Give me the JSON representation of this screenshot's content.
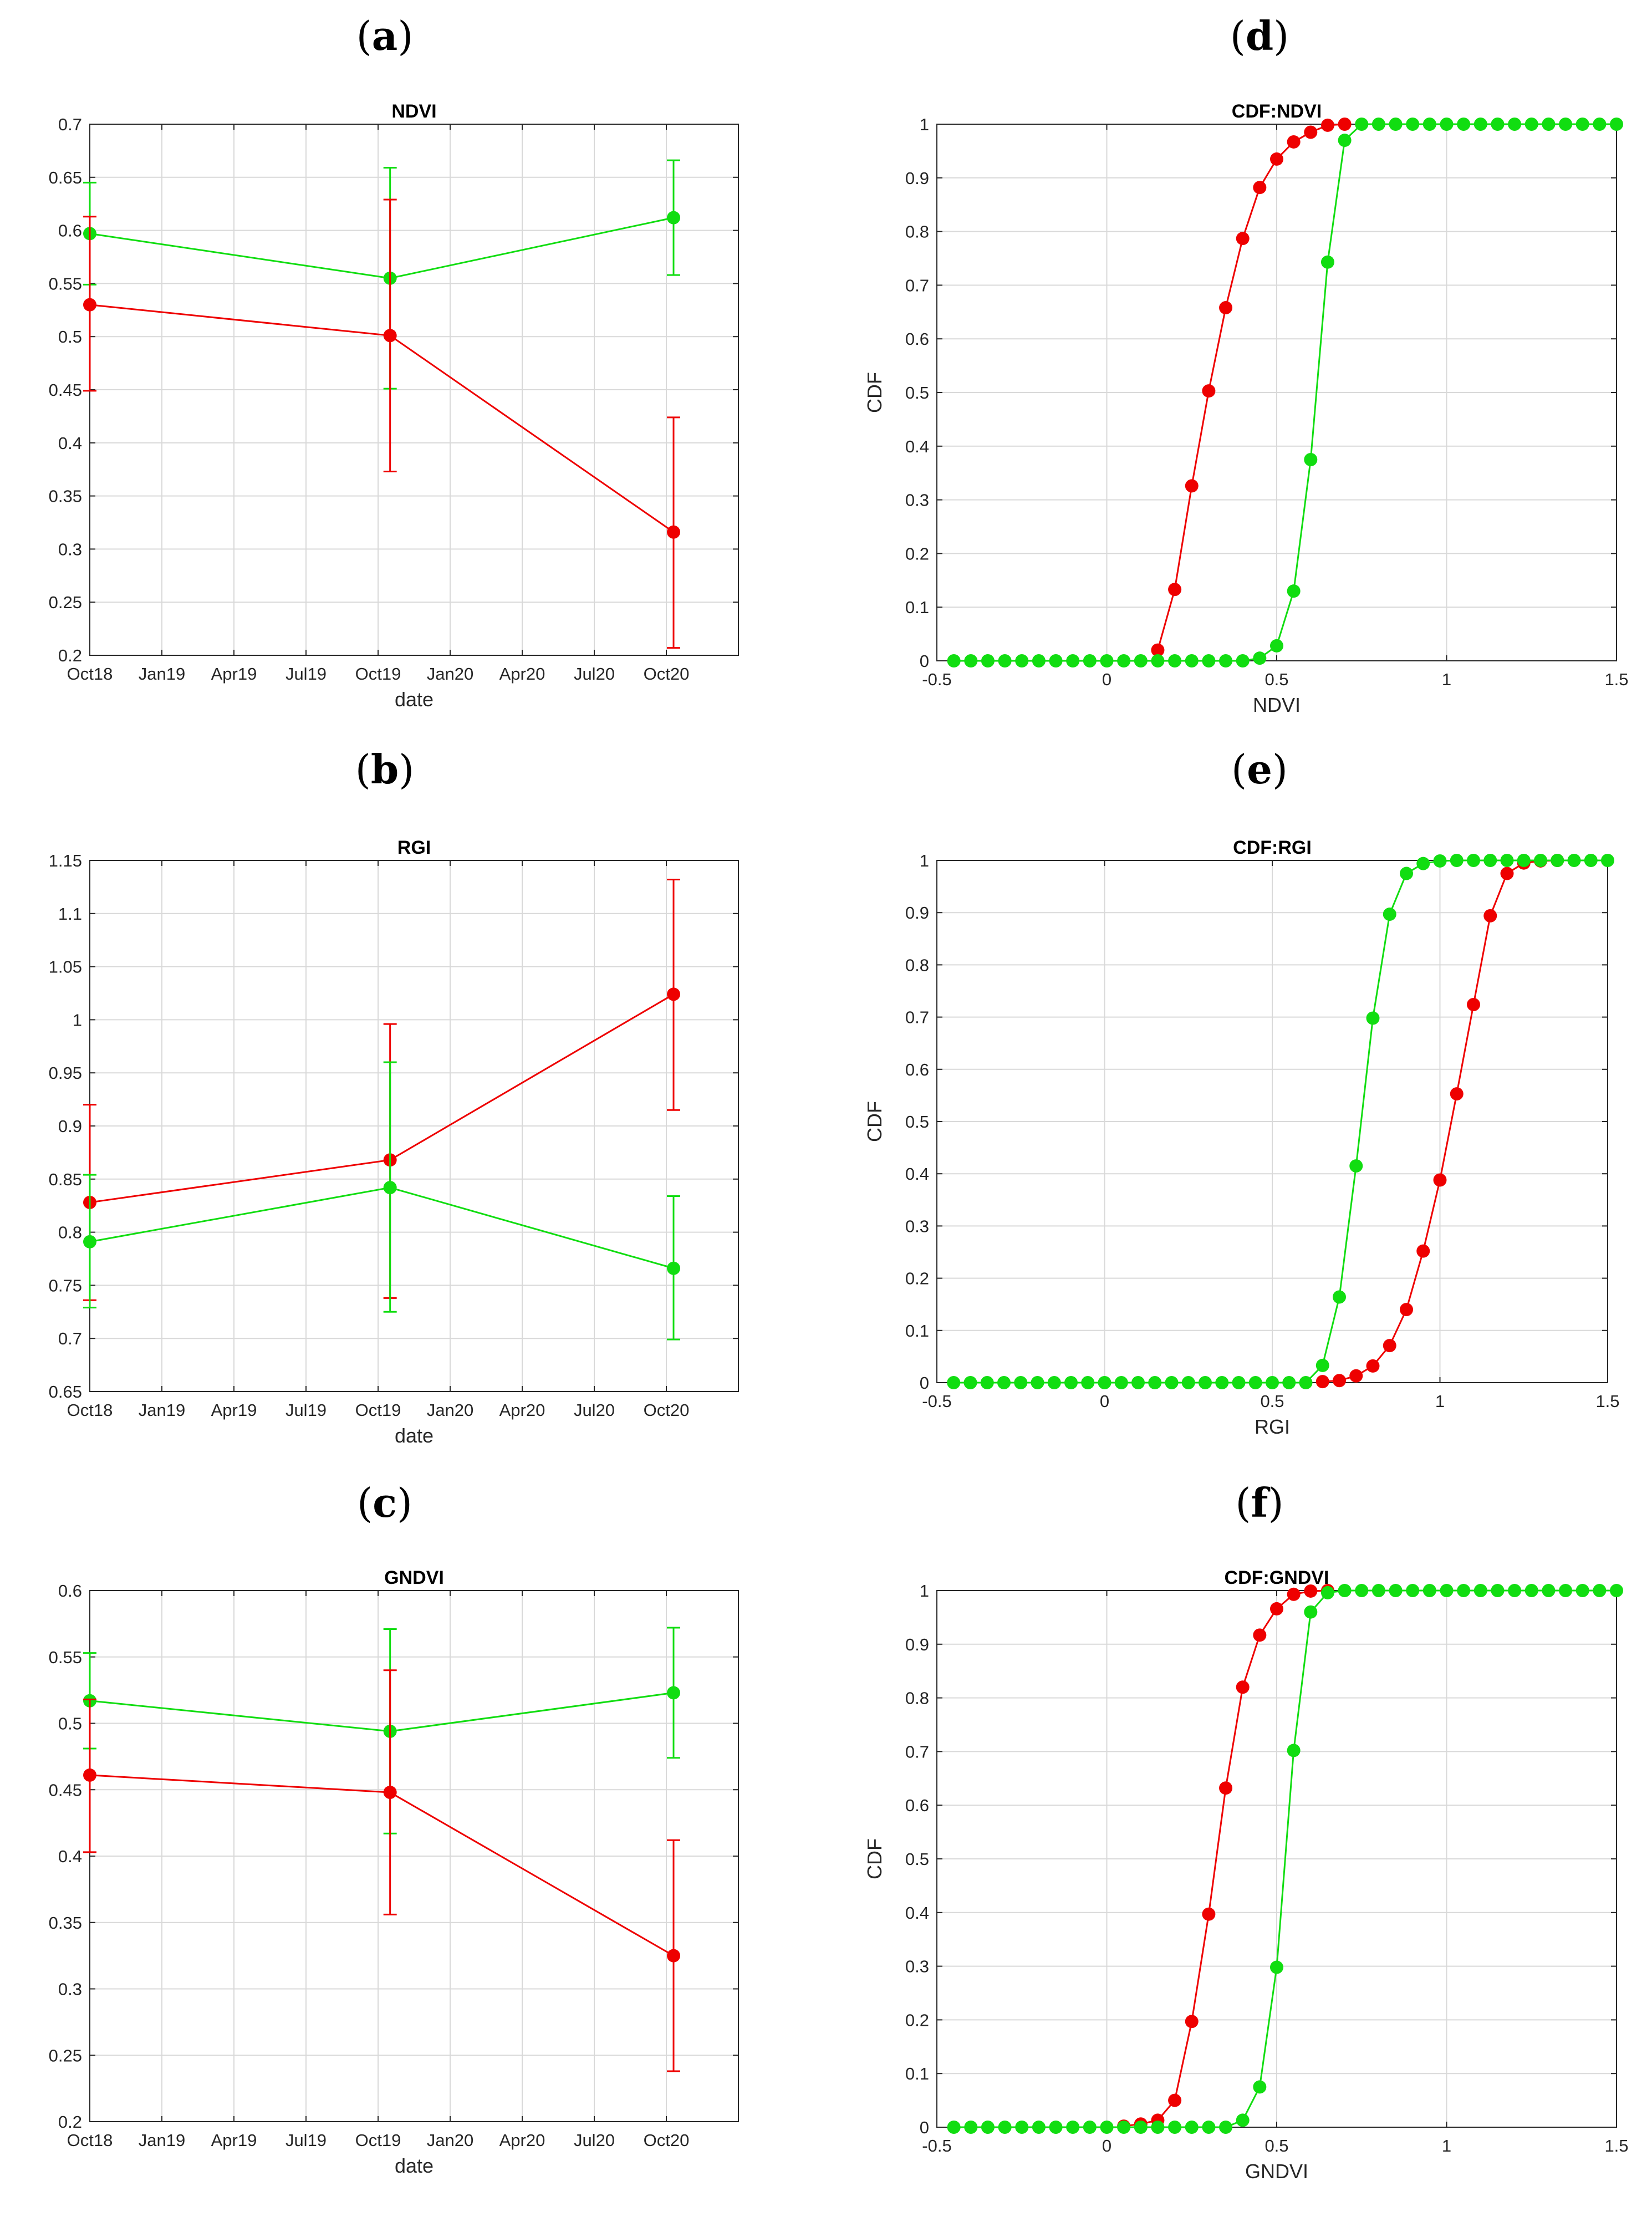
{
  "colors": {
    "red": "#ee0000",
    "green": "#11dd11"
  },
  "chart_data": [
    {
      "id": "a",
      "type": "line",
      "panel_label": "(a)",
      "title": "NDVI",
      "xlabel": "date",
      "ylabel": "",
      "ylim": [
        0.2,
        0.7
      ],
      "xlim": [
        0,
        27
      ],
      "xticks": [
        0,
        3,
        6,
        9,
        12,
        15,
        18,
        21,
        24
      ],
      "xticklabels": [
        "Oct18",
        "Jan19",
        "Apr19",
        "Jul19",
        "Oct19",
        "Jan20",
        "Apr20",
        "Jul20",
        "Oct20"
      ],
      "yticks": [
        0.2,
        0.25,
        0.3,
        0.35,
        0.4,
        0.45,
        0.5,
        0.55,
        0.6,
        0.65,
        0.7
      ],
      "yticklabels": [
        "0.2",
        "0.25",
        "0.3",
        "0.35",
        "0.4",
        "0.45",
        "0.5",
        "0.55",
        "0.6",
        "0.65",
        "0.7"
      ],
      "grid": true,
      "series": [
        {
          "name": "green",
          "color": "#11dd11",
          "x": [
            0,
            12.5,
            24.3
          ],
          "y": [
            0.597,
            0.555,
            0.612
          ],
          "err_low": [
            0.549,
            0.451,
            0.558
          ],
          "err_high": [
            0.645,
            0.659,
            0.666
          ]
        },
        {
          "name": "red",
          "color": "#ee0000",
          "x": [
            0,
            12.5,
            24.3
          ],
          "y": [
            0.53,
            0.501,
            0.316
          ],
          "err_low": [
            0.449,
            0.373,
            0.207
          ],
          "err_high": [
            0.613,
            0.629,
            0.424
          ]
        }
      ]
    },
    {
      "id": "b",
      "type": "line",
      "panel_label": "(b)",
      "title": "RGI",
      "xlabel": "date",
      "ylabel": "",
      "ylim": [
        0.65,
        1.15
      ],
      "xlim": [
        0,
        27
      ],
      "xticks": [
        0,
        3,
        6,
        9,
        12,
        15,
        18,
        21,
        24
      ],
      "xticklabels": [
        "Oct18",
        "Jan19",
        "Apr19",
        "Jul19",
        "Oct19",
        "Jan20",
        "Apr20",
        "Jul20",
        "Oct20"
      ],
      "yticks": [
        0.65,
        0.7,
        0.75,
        0.8,
        0.85,
        0.9,
        0.95,
        1.0,
        1.05,
        1.1,
        1.15
      ],
      "yticklabels": [
        "0.65",
        "0.7",
        "0.75",
        "0.8",
        "0.85",
        "0.9",
        "0.95",
        "1",
        "1.05",
        "1.1",
        "1.15"
      ],
      "grid": true,
      "series": [
        {
          "name": "red",
          "color": "#ee0000",
          "x": [
            0,
            12.5,
            24.3
          ],
          "y": [
            0.828,
            0.868,
            1.024
          ],
          "err_low": [
            0.736,
            0.738,
            0.915
          ],
          "err_high": [
            0.92,
            0.996,
            1.132
          ]
        },
        {
          "name": "green",
          "color": "#11dd11",
          "x": [
            0,
            12.5,
            24.3
          ],
          "y": [
            0.791,
            0.842,
            0.766
          ],
          "err_low": [
            0.729,
            0.725,
            0.699
          ],
          "err_high": [
            0.854,
            0.96,
            0.834
          ]
        }
      ]
    },
    {
      "id": "c",
      "type": "line",
      "panel_label": "(c)",
      "title": "GNDVI",
      "xlabel": "date",
      "ylabel": "",
      "ylim": [
        0.2,
        0.6
      ],
      "xlim": [
        0,
        27
      ],
      "xticks": [
        0,
        3,
        6,
        9,
        12,
        15,
        18,
        21,
        24
      ],
      "xticklabels": [
        "Oct18",
        "Jan19",
        "Apr19",
        "Jul19",
        "Oct19",
        "Jan20",
        "Apr20",
        "Jul20",
        "Oct20"
      ],
      "yticks": [
        0.2,
        0.25,
        0.3,
        0.35,
        0.4,
        0.45,
        0.5,
        0.55,
        0.6
      ],
      "yticklabels": [
        "0.2",
        "0.25",
        "0.3",
        "0.35",
        "0.4",
        "0.45",
        "0.5",
        "0.55",
        "0.6"
      ],
      "grid": true,
      "series": [
        {
          "name": "green",
          "color": "#11dd11",
          "x": [
            0,
            12.5,
            24.3
          ],
          "y": [
            0.517,
            0.494,
            0.523
          ],
          "err_low": [
            0.481,
            0.417,
            0.474
          ],
          "err_high": [
            0.553,
            0.571,
            0.572
          ]
        },
        {
          "name": "red",
          "color": "#ee0000",
          "x": [
            0,
            12.5,
            24.3
          ],
          "y": [
            0.461,
            0.448,
            0.325
          ],
          "err_low": [
            0.403,
            0.356,
            0.238
          ],
          "err_high": [
            0.518,
            0.54,
            0.412
          ]
        }
      ]
    },
    {
      "id": "d",
      "type": "line",
      "panel_label": "(d)",
      "title": "CDF:NDVI",
      "xlabel": "NDVI",
      "ylabel": "CDF",
      "xlim": [
        -0.5,
        1.5
      ],
      "ylim": [
        0,
        1
      ],
      "xticks": [
        -0.5,
        0,
        0.5,
        1,
        1.5
      ],
      "xticklabels": [
        "-0.5",
        "0",
        "0.5",
        "1",
        "1.5"
      ],
      "yticks": [
        0,
        0.1,
        0.2,
        0.3,
        0.4,
        0.5,
        0.6,
        0.7,
        0.8,
        0.9,
        1
      ],
      "yticklabels": [
        "0",
        "0.1",
        "0.2",
        "0.3",
        "0.4",
        "0.5",
        "0.6",
        "0.7",
        "0.8",
        "0.9",
        "1"
      ],
      "grid": true,
      "series": [
        {
          "name": "red",
          "color": "#ee0000",
          "x": [
            0.15,
            0.2,
            0.25,
            0.3,
            0.35,
            0.4,
            0.45,
            0.5,
            0.55,
            0.6,
            0.65,
            0.7
          ],
          "y": [
            0.02,
            0.133,
            0.326,
            0.503,
            0.658,
            0.787,
            0.882,
            0.935,
            0.967,
            0.985,
            0.998,
            1.0
          ]
        },
        {
          "name": "green",
          "color": "#11dd11",
          "x": [
            -0.45,
            -0.4,
            -0.35,
            -0.3,
            -0.25,
            -0.2,
            -0.15,
            -0.1,
            -0.05,
            0,
            0.05,
            0.1,
            0.15,
            0.2,
            0.25,
            0.3,
            0.35,
            0.4,
            0.45,
            0.5,
            0.55,
            0.6,
            0.65,
            0.7,
            0.75,
            0.8,
            0.85,
            0.9,
            0.95,
            1.0,
            1.05,
            1.1,
            1.15,
            1.2,
            1.25,
            1.3,
            1.35,
            1.4,
            1.45,
            1.5
          ],
          "y": [
            0,
            0,
            0,
            0,
            0,
            0,
            0,
            0,
            0,
            0,
            0,
            0,
            0,
            0,
            0,
            0,
            0,
            0,
            0.005,
            0.028,
            0.13,
            0.375,
            0.743,
            0.97,
            1,
            1,
            1,
            1,
            1,
            1,
            1,
            1,
            1,
            1,
            1,
            1,
            1,
            1,
            1,
            1
          ]
        }
      ]
    },
    {
      "id": "e",
      "type": "line",
      "panel_label": "(e)",
      "title": "CDF:RGI",
      "xlabel": "RGI",
      "ylabel": "CDF",
      "xlim": [
        -0.5,
        1.5
      ],
      "ylim": [
        0,
        1
      ],
      "xticks": [
        -0.5,
        0,
        0.5,
        1,
        1.5
      ],
      "xticklabels": [
        "-0.5",
        "0",
        "0.5",
        "1",
        "1.5"
      ],
      "yticks": [
        0,
        0.1,
        0.2,
        0.3,
        0.4,
        0.5,
        0.6,
        0.7,
        0.8,
        0.9,
        1
      ],
      "yticklabels": [
        "0",
        "0.1",
        "0.2",
        "0.3",
        "0.4",
        "0.5",
        "0.6",
        "0.7",
        "0.8",
        "0.9",
        "1"
      ],
      "grid": true,
      "series": [
        {
          "name": "red",
          "color": "#ee0000",
          "x": [
            0.65,
            0.7,
            0.75,
            0.8,
            0.85,
            0.9,
            0.95,
            1.0,
            1.05,
            1.1,
            1.15,
            1.2,
            1.25,
            1.3,
            1.35
          ],
          "y": [
            0.002,
            0.004,
            0.013,
            0.032,
            0.071,
            0.14,
            0.252,
            0.388,
            0.553,
            0.724,
            0.894,
            0.975,
            0.995,
            0.999,
            1.0
          ]
        },
        {
          "name": "green",
          "color": "#11dd11",
          "x": [
            -0.45,
            -0.4,
            -0.35,
            -0.3,
            -0.25,
            -0.2,
            -0.15,
            -0.1,
            -0.05,
            0,
            0.05,
            0.1,
            0.15,
            0.2,
            0.25,
            0.3,
            0.35,
            0.4,
            0.45,
            0.5,
            0.55,
            0.6,
            0.65,
            0.7,
            0.75,
            0.8,
            0.85,
            0.9,
            0.95,
            1.0,
            1.05,
            1.1,
            1.15,
            1.2,
            1.25,
            1.3,
            1.35,
            1.4,
            1.45,
            1.5
          ],
          "y": [
            0,
            0,
            0,
            0,
            0,
            0,
            0,
            0,
            0,
            0,
            0,
            0,
            0,
            0,
            0,
            0,
            0,
            0,
            0,
            0,
            0,
            0,
            0.033,
            0.164,
            0.415,
            0.698,
            0.897,
            0.975,
            0.994,
            0.999,
            1,
            1,
            1,
            1,
            1,
            1,
            1,
            1,
            1,
            1
          ]
        }
      ]
    },
    {
      "id": "f",
      "type": "line",
      "panel_label": "(f)",
      "title": "CDF:GNDVI",
      "xlabel": "GNDVI",
      "ylabel": "CDF",
      "xlim": [
        -0.5,
        1.5
      ],
      "ylim": [
        0,
        1
      ],
      "xticks": [
        -0.5,
        0,
        0.5,
        1,
        1.5
      ],
      "xticklabels": [
        "-0.5",
        "0",
        "0.5",
        "1",
        "1.5"
      ],
      "yticks": [
        0,
        0.1,
        0.2,
        0.3,
        0.4,
        0.5,
        0.6,
        0.7,
        0.8,
        0.9,
        1
      ],
      "yticklabels": [
        "0",
        "0.1",
        "0.2",
        "0.3",
        "0.4",
        "0.5",
        "0.6",
        "0.7",
        "0.8",
        "0.9",
        "1"
      ],
      "grid": true,
      "series": [
        {
          "name": "red",
          "color": "#ee0000",
          "x": [
            0.05,
            0.1,
            0.15,
            0.2,
            0.25,
            0.3,
            0.35,
            0.4,
            0.45,
            0.5,
            0.55,
            0.6,
            0.65
          ],
          "y": [
            0.002,
            0.006,
            0.013,
            0.05,
            0.197,
            0.397,
            0.632,
            0.82,
            0.917,
            0.966,
            0.993,
            0.999,
            1.0
          ]
        },
        {
          "name": "green",
          "color": "#11dd11",
          "x": [
            -0.45,
            -0.4,
            -0.35,
            -0.3,
            -0.25,
            -0.2,
            -0.15,
            -0.1,
            -0.05,
            0,
            0.05,
            0.1,
            0.15,
            0.2,
            0.25,
            0.3,
            0.35,
            0.4,
            0.45,
            0.5,
            0.55,
            0.6,
            0.65,
            0.7,
            0.75,
            0.8,
            0.85,
            0.9,
            0.95,
            1.0,
            1.05,
            1.1,
            1.15,
            1.2,
            1.25,
            1.3,
            1.35,
            1.4,
            1.45,
            1.5
          ],
          "y": [
            0,
            0,
            0,
            0,
            0,
            0,
            0,
            0,
            0,
            0,
            0,
            0,
            0,
            0,
            0,
            0,
            0,
            0.013,
            0.075,
            0.298,
            0.702,
            0.96,
            0.996,
            1,
            1,
            1,
            1,
            1,
            1,
            1,
            1,
            1,
            1,
            1,
            1,
            1,
            1,
            1,
            1,
            1
          ]
        }
      ]
    }
  ]
}
